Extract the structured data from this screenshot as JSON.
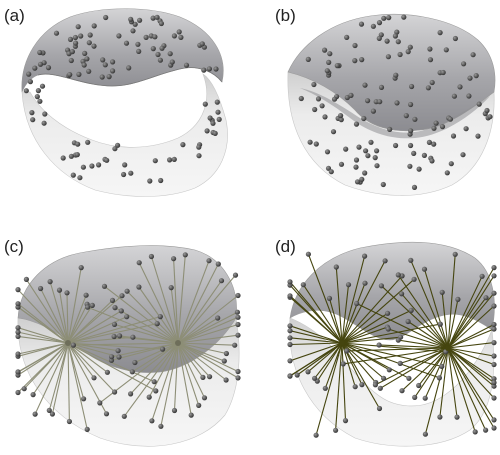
{
  "panels": [
    {
      "label": "(a)",
      "kind": "open-lower-gap"
    },
    {
      "label": "(b)",
      "kind": "folded-closed"
    },
    {
      "label": "(c)",
      "kind": "two-hub-fans"
    },
    {
      "label": "(d)",
      "kind": "two-hub-fans-open"
    }
  ],
  "colors": {
    "background": "#ffffff",
    "surface_dark": "#a9a9ad",
    "surface_light": "#f1f1f1",
    "point": "#4a4a4a",
    "rod_light": "#9a9b88",
    "rod_dark": "#45450f"
  }
}
